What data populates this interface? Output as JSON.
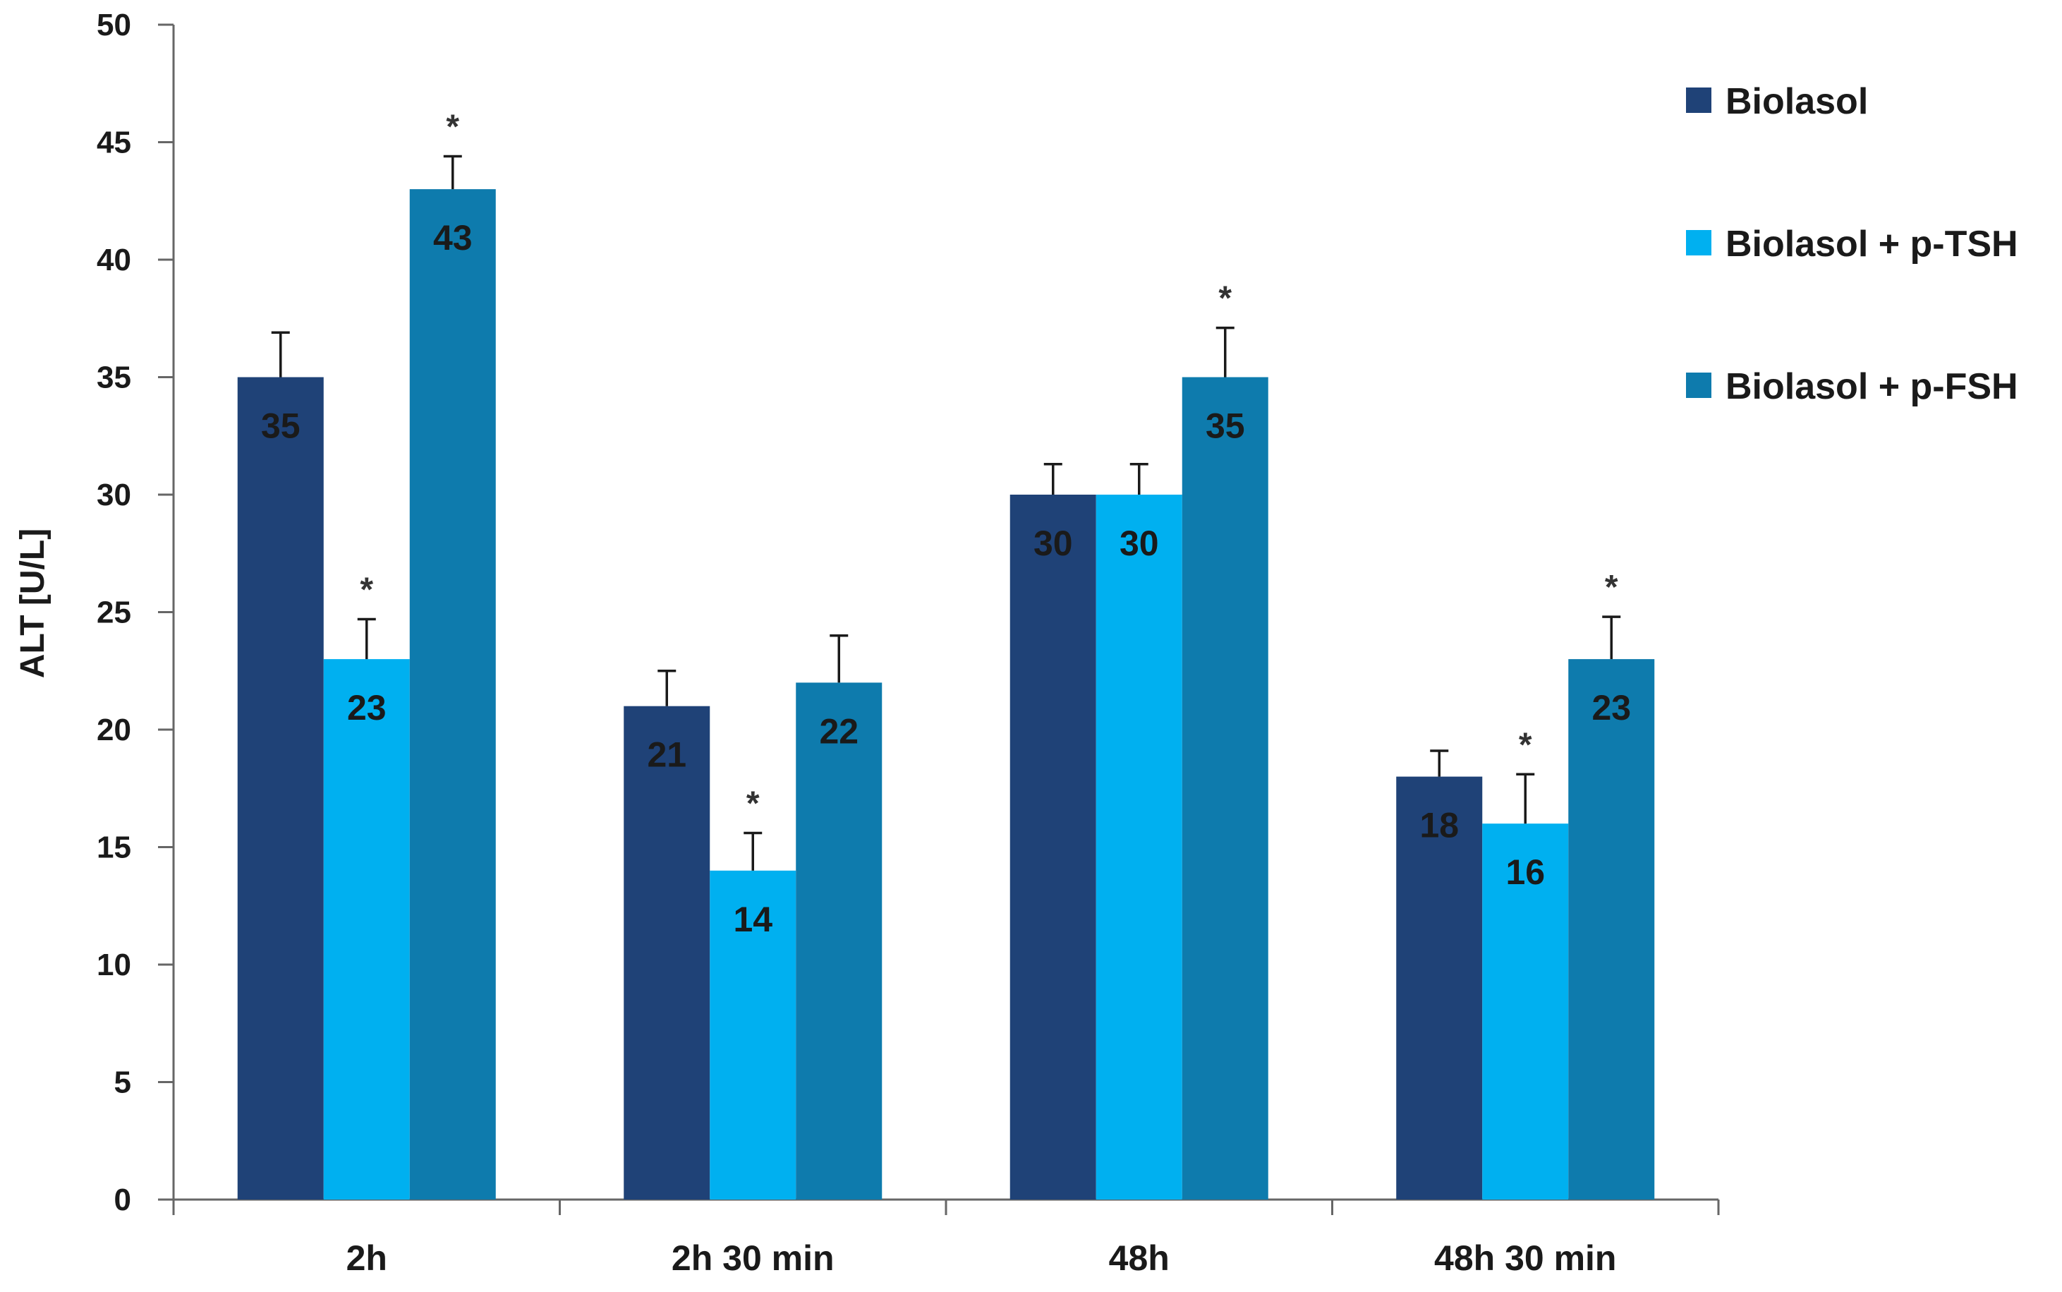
{
  "chart_data": {
    "type": "bar",
    "title": "",
    "xlabel": "",
    "ylabel": "ALT [U/L]",
    "ylim": [
      0,
      50
    ],
    "yticks": [
      0,
      5,
      10,
      15,
      20,
      25,
      30,
      35,
      40,
      45,
      50
    ],
    "grid": false,
    "legend_position": "top-right",
    "categories": [
      "2h",
      "2h 30 min",
      "48h",
      "48h 30 min"
    ],
    "series": [
      {
        "name": "Biolasol",
        "color": "#1f4277",
        "values": [
          35,
          21,
          30,
          18
        ],
        "errors": [
          1.9,
          1.5,
          1.3,
          1.1
        ],
        "significant": [
          false,
          false,
          false,
          false
        ],
        "labels": [
          "35",
          "21",
          "30",
          "18"
        ]
      },
      {
        "name": "Biolasol + p-TSH",
        "color": "#00b0f0",
        "values": [
          23,
          14,
          30,
          16
        ],
        "errors": [
          1.7,
          1.6,
          1.3,
          2.1
        ],
        "significant": [
          true,
          true,
          false,
          true
        ],
        "labels": [
          "23",
          "14",
          "30",
          "16"
        ]
      },
      {
        "name": "Biolasol + p-FSH",
        "color": "#0e7bad",
        "values": [
          43,
          22,
          35,
          23
        ],
        "errors": [
          1.4,
          2.0,
          2.1,
          1.8
        ],
        "significant": [
          true,
          false,
          true,
          true
        ],
        "labels": [
          "43",
          "22",
          "35",
          "23"
        ]
      }
    ],
    "significance_marker": "*"
  }
}
